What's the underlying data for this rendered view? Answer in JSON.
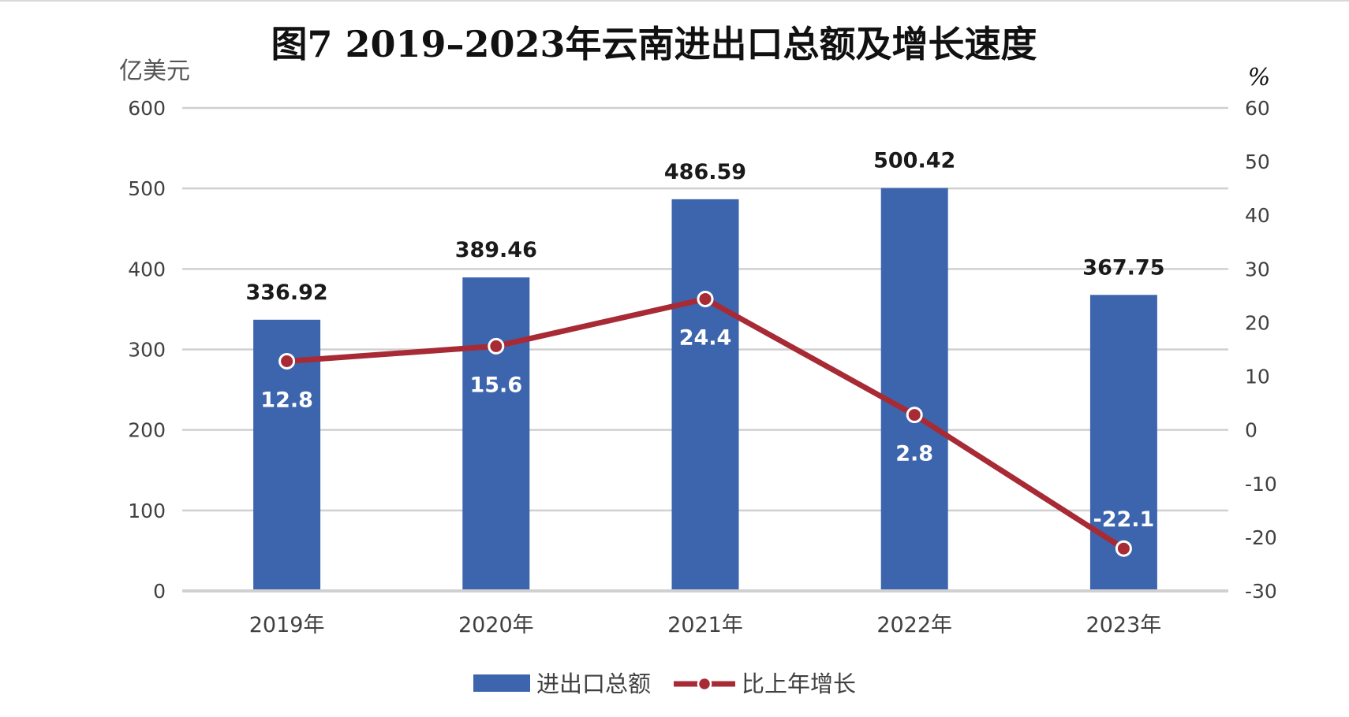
{
  "chart_data": {
    "type": "bar",
    "title": "图7  2019–2023年云南进出口总额及增长速度",
    "categories": [
      "2019年",
      "2020年",
      "2021年",
      "2022年",
      "2023年"
    ],
    "series": [
      {
        "name": "进出口总额",
        "type": "bar",
        "axis": "left",
        "color": "#3d65ad",
        "values": [
          336.92,
          389.46,
          486.59,
          500.42,
          367.75
        ],
        "labels": [
          "336.92",
          "389.46",
          "486.59",
          "500.42",
          "367.75"
        ]
      },
      {
        "name": "比上年增长",
        "type": "line",
        "axis": "right",
        "color": "#a72a35",
        "values": [
          12.8,
          15.6,
          24.4,
          2.8,
          -22.1
        ],
        "labels": [
          "12.8",
          "15.6",
          "24.4",
          "2.8",
          "-22.1"
        ]
      }
    ],
    "ylabel_left": "亿美元",
    "ylabel_right": "%",
    "ylim_left": [
      0,
      600
    ],
    "ylim_right": [
      -30,
      60
    ],
    "yticks_left": [
      "600",
      "500",
      "400",
      "300",
      "200",
      "100",
      "0"
    ],
    "yticks_right": [
      "60",
      "50",
      "40",
      "30",
      "20",
      "10",
      "0",
      "-10",
      "-20",
      "-30"
    ],
    "grid": true,
    "legend": "bottom-center"
  }
}
